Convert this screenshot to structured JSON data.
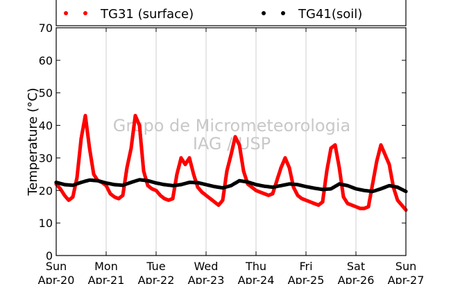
{
  "chart_data": {
    "type": "scatter",
    "ylabel": "Temperature (°C)",
    "ylim": [
      0,
      70
    ],
    "yticks": [
      0,
      10,
      20,
      30,
      40,
      50,
      60,
      70
    ],
    "xlim": [
      "2020-04-20",
      "2020-04-27"
    ],
    "xticks": [
      {
        "day": "Sun",
        "date": "Apr-20"
      },
      {
        "day": "Mon",
        "date": "Apr-21"
      },
      {
        "day": "Tue",
        "date": "Apr-22"
      },
      {
        "day": "Wed",
        "date": "Apr-23"
      },
      {
        "day": "Thu",
        "date": "Apr-24"
      },
      {
        "day": "Fri",
        "date": "Apr-25"
      },
      {
        "day": "Sat",
        "date": "Apr-26"
      },
      {
        "day": "Sun",
        "date": "Apr-27"
      }
    ],
    "grid": "vertical",
    "legend_position": "top",
    "watermark": [
      "Grupo de Micrometeorologia",
      "IAG / USP"
    ],
    "series": [
      {
        "name": "TG31 (surface)",
        "color": "#ff0000",
        "points": [
          [
            "2020-04-20 00:00",
            22.0
          ],
          [
            "2020-04-20 02:00",
            20.5
          ],
          [
            "2020-04-20 04:00",
            18.5
          ],
          [
            "2020-04-20 06:00",
            17.0
          ],
          [
            "2020-04-20 08:00",
            18.0
          ],
          [
            "2020-04-20 10:00",
            24.0
          ],
          [
            "2020-04-20 12:00",
            36.0
          ],
          [
            "2020-04-20 14:00",
            43.0
          ],
          [
            "2020-04-20 16:00",
            33.0
          ],
          [
            "2020-04-20 18:00",
            25.0
          ],
          [
            "2020-04-20 20:00",
            23.0
          ],
          [
            "2020-04-20 22:00",
            22.5
          ],
          [
            "2020-04-21 00:00",
            21.5
          ],
          [
            "2020-04-21 02:00",
            19.0
          ],
          [
            "2020-04-21 04:00",
            18.0
          ],
          [
            "2020-04-21 06:00",
            17.5
          ],
          [
            "2020-04-21 08:00",
            18.5
          ],
          [
            "2020-04-21 10:00",
            27.0
          ],
          [
            "2020-04-21 12:00",
            33.0
          ],
          [
            "2020-04-21 14:00",
            43.0
          ],
          [
            "2020-04-21 16:00",
            40.0
          ],
          [
            "2020-04-21 18:00",
            26.0
          ],
          [
            "2020-04-21 20:00",
            21.5
          ],
          [
            "2020-04-21 22:00",
            20.5
          ],
          [
            "2020-04-22 00:00",
            20.0
          ],
          [
            "2020-04-22 02:00",
            18.5
          ],
          [
            "2020-04-22 04:00",
            17.5
          ],
          [
            "2020-04-22 06:00",
            17.0
          ],
          [
            "2020-04-22 08:00",
            17.5
          ],
          [
            "2020-04-22 10:00",
            25.0
          ],
          [
            "2020-04-22 12:00",
            30.0
          ],
          [
            "2020-04-22 14:00",
            28.0
          ],
          [
            "2020-04-22 16:00",
            30.0
          ],
          [
            "2020-04-22 18:00",
            25.0
          ],
          [
            "2020-04-22 20:00",
            21.0
          ],
          [
            "2020-04-22 22:00",
            19.5
          ],
          [
            "2020-04-23 00:00",
            18.5
          ],
          [
            "2020-04-23 02:00",
            17.5
          ],
          [
            "2020-04-23 04:00",
            16.5
          ],
          [
            "2020-04-23 06:00",
            15.5
          ],
          [
            "2020-04-23 08:00",
            17.0
          ],
          [
            "2020-04-23 10:00",
            26.0
          ],
          [
            "2020-04-23 12:00",
            31.0
          ],
          [
            "2020-04-23 14:00",
            36.5
          ],
          [
            "2020-04-23 16:00",
            34.0
          ],
          [
            "2020-04-23 18:00",
            26.0
          ],
          [
            "2020-04-23 20:00",
            22.0
          ],
          [
            "2020-04-23 22:00",
            21.0
          ],
          [
            "2020-04-24 00:00",
            20.0
          ],
          [
            "2020-04-24 02:00",
            19.5
          ],
          [
            "2020-04-24 04:00",
            19.0
          ],
          [
            "2020-04-24 06:00",
            18.5
          ],
          [
            "2020-04-24 08:00",
            19.0
          ],
          [
            "2020-04-24 10:00",
            23.0
          ],
          [
            "2020-04-24 12:00",
            27.0
          ],
          [
            "2020-04-24 14:00",
            30.0
          ],
          [
            "2020-04-24 16:00",
            27.0
          ],
          [
            "2020-04-24 18:00",
            21.0
          ],
          [
            "2020-04-24 20:00",
            18.5
          ],
          [
            "2020-04-24 22:00",
            17.5
          ],
          [
            "2020-04-25 00:00",
            17.0
          ],
          [
            "2020-04-25 02:00",
            16.5
          ],
          [
            "2020-04-25 04:00",
            16.0
          ],
          [
            "2020-04-25 06:00",
            15.5
          ],
          [
            "2020-04-25 08:00",
            16.5
          ],
          [
            "2020-04-25 10:00",
            26.0
          ],
          [
            "2020-04-25 12:00",
            33.0
          ],
          [
            "2020-04-25 14:00",
            34.0
          ],
          [
            "2020-04-25 16:00",
            27.0
          ],
          [
            "2020-04-25 18:00",
            18.0
          ],
          [
            "2020-04-25 20:00",
            16.0
          ],
          [
            "2020-04-25 22:00",
            15.5
          ],
          [
            "2020-04-26 00:00",
            15.0
          ],
          [
            "2020-04-26 02:00",
            14.5
          ],
          [
            "2020-04-26 04:00",
            14.5
          ],
          [
            "2020-04-26 06:00",
            15.0
          ],
          [
            "2020-04-26 08:00",
            22.0
          ],
          [
            "2020-04-26 10:00",
            29.0
          ],
          [
            "2020-04-26 12:00",
            34.0
          ],
          [
            "2020-04-26 14:00",
            31.0
          ],
          [
            "2020-04-26 16:00",
            28.0
          ],
          [
            "2020-04-26 18:00",
            21.0
          ],
          [
            "2020-04-26 20:00",
            17.0
          ],
          [
            "2020-04-26 22:00",
            15.5
          ],
          [
            "2020-04-27 00:00",
            14.0
          ]
        ]
      },
      {
        "name": "TG41(soil)",
        "color": "#000000",
        "points": [
          [
            "2020-04-20 00:00",
            22.5
          ],
          [
            "2020-04-20 04:00",
            21.8
          ],
          [
            "2020-04-20 08:00",
            21.6
          ],
          [
            "2020-04-20 12:00",
            22.5
          ],
          [
            "2020-04-20 16:00",
            23.2
          ],
          [
            "2020-04-20 20:00",
            23.0
          ],
          [
            "2020-04-21 00:00",
            22.3
          ],
          [
            "2020-04-21 04:00",
            21.8
          ],
          [
            "2020-04-21 08:00",
            21.6
          ],
          [
            "2020-04-21 12:00",
            22.5
          ],
          [
            "2020-04-21 16:00",
            23.3
          ],
          [
            "2020-04-21 20:00",
            23.0
          ],
          [
            "2020-04-22 00:00",
            22.3
          ],
          [
            "2020-04-22 04:00",
            21.8
          ],
          [
            "2020-04-22 08:00",
            21.5
          ],
          [
            "2020-04-22 12:00",
            21.8
          ],
          [
            "2020-04-22 16:00",
            22.5
          ],
          [
            "2020-04-22 20:00",
            22.4
          ],
          [
            "2020-04-23 00:00",
            21.8
          ],
          [
            "2020-04-23 04:00",
            21.2
          ],
          [
            "2020-04-23 08:00",
            20.8
          ],
          [
            "2020-04-23 12:00",
            21.5
          ],
          [
            "2020-04-23 16:00",
            23.0
          ],
          [
            "2020-04-23 20:00",
            22.6
          ],
          [
            "2020-04-24 00:00",
            21.8
          ],
          [
            "2020-04-24 04:00",
            21.3
          ],
          [
            "2020-04-24 08:00",
            21.0
          ],
          [
            "2020-04-24 12:00",
            21.5
          ],
          [
            "2020-04-24 16:00",
            22.0
          ],
          [
            "2020-04-24 20:00",
            21.8
          ],
          [
            "2020-04-25 00:00",
            21.2
          ],
          [
            "2020-04-25 04:00",
            20.7
          ],
          [
            "2020-04-25 08:00",
            20.3
          ],
          [
            "2020-04-25 12:00",
            20.5
          ],
          [
            "2020-04-25 16:00",
            22.0
          ],
          [
            "2020-04-25 20:00",
            21.5
          ],
          [
            "2020-04-26 00:00",
            20.5
          ],
          [
            "2020-04-26 04:00",
            20.0
          ],
          [
            "2020-04-26 08:00",
            19.7
          ],
          [
            "2020-04-26 12:00",
            20.5
          ],
          [
            "2020-04-26 16:00",
            21.5
          ],
          [
            "2020-04-26 20:00",
            21.0
          ],
          [
            "2020-04-27 00:00",
            19.7
          ]
        ]
      }
    ]
  }
}
